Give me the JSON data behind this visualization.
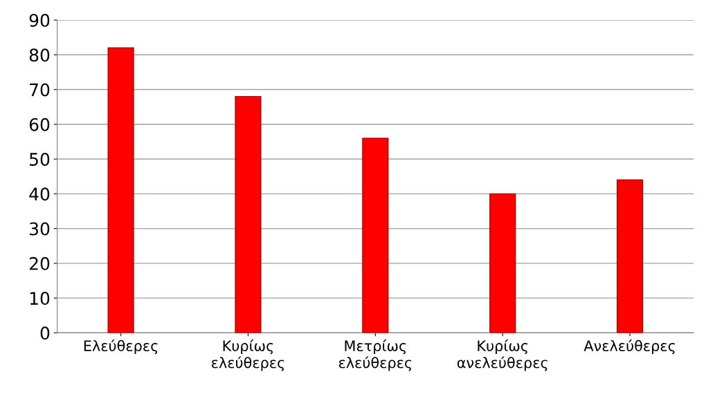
{
  "chart_data": {
    "type": "bar",
    "categories": [
      "Ελεύθερες",
      "Κυρίως\nελεύθερες",
      "Μετρίως\nελεύθερες",
      "Κυρίως\nανελεύθερες",
      "Ανελεύθερες"
    ],
    "values": [
      82,
      68,
      56,
      40,
      44
    ],
    "color": "#ff0000",
    "ylim": [
      0,
      90
    ],
    "yticks": [
      0,
      10,
      20,
      30,
      40,
      50,
      60,
      70,
      80,
      90
    ],
    "grid": "y",
    "legend": false
  }
}
